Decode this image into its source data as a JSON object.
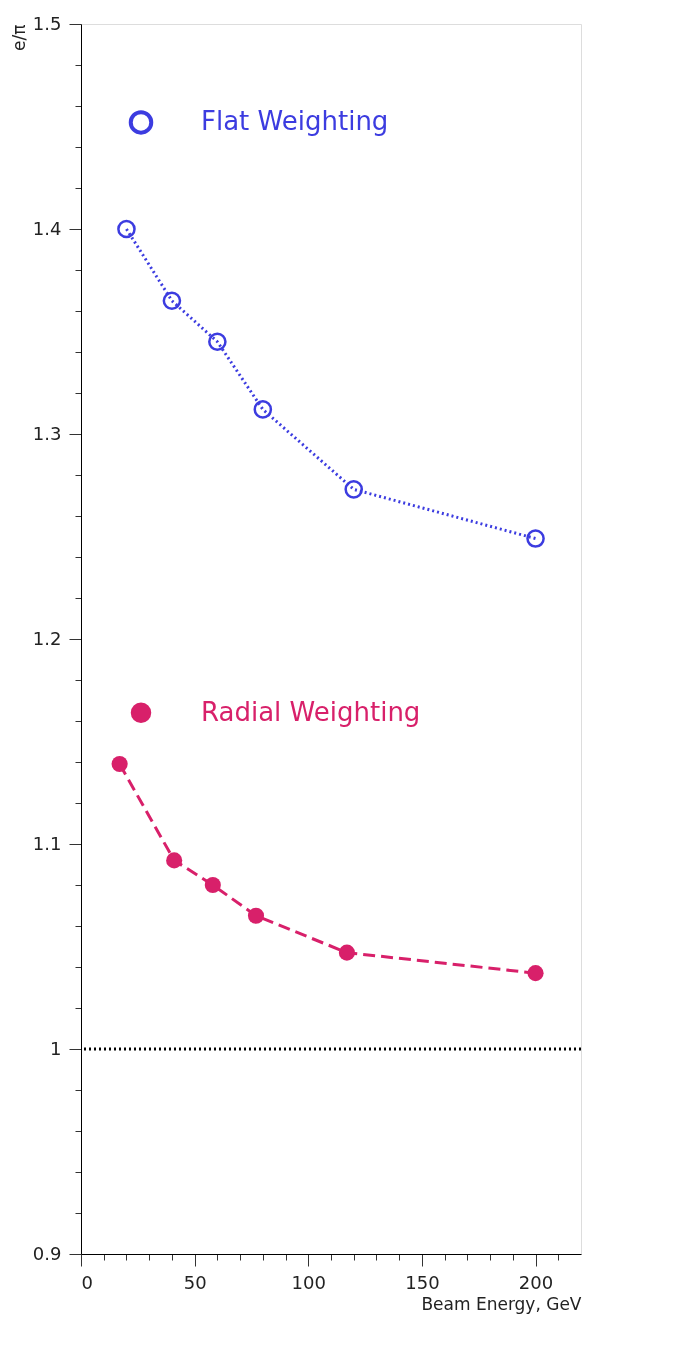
{
  "chart_data": {
    "type": "line",
    "xlabel": "Beam Energy, GeV",
    "ylabel": "e/π",
    "xlim": [
      0,
      220
    ],
    "ylim": [
      0.9,
      1.5
    ],
    "xticks": [
      0,
      {
        "value": 10,
        "label": null
      },
      {
        "value": 20,
        "label": null
      },
      {
        "value": 30,
        "label": null
      },
      {
        "value": 40,
        "label": null
      },
      50,
      {
        "value": 60,
        "label": null
      },
      {
        "value": 70,
        "label": null
      },
      {
        "value": 80,
        "label": null
      },
      {
        "value": 90,
        "label": null
      },
      100,
      {
        "value": 110,
        "label": null
      },
      {
        "value": 120,
        "label": null
      },
      {
        "value": 130,
        "label": null
      },
      {
        "value": 140,
        "label": null
      },
      150,
      {
        "value": 160,
        "label": null
      },
      {
        "value": 170,
        "label": null
      },
      {
        "value": 180,
        "label": null
      },
      {
        "value": 190,
        "label": null
      },
      200,
      {
        "value": 210,
        "label": null
      }
    ],
    "yticks": [
      0.9,
      {
        "value": 0.92,
        "label": null
      },
      {
        "value": 0.94,
        "label": null
      },
      {
        "value": 0.96,
        "label": null
      },
      {
        "value": 0.98,
        "label": null
      },
      1,
      {
        "value": 1.02,
        "label": null
      },
      {
        "value": 1.04,
        "label": null
      },
      {
        "value": 1.06,
        "label": null
      },
      {
        "value": 1.08,
        "label": null
      },
      1.1,
      {
        "value": 1.12,
        "label": null
      },
      {
        "value": 1.14,
        "label": null
      },
      {
        "value": 1.16,
        "label": null
      },
      {
        "value": 1.18,
        "label": null
      },
      1.2,
      {
        "value": 1.22,
        "label": null
      },
      {
        "value": 1.24,
        "label": null
      },
      {
        "value": 1.26,
        "label": null
      },
      {
        "value": 1.28,
        "label": null
      },
      1.3,
      {
        "value": 1.32,
        "label": null
      },
      {
        "value": 1.34,
        "label": null
      },
      {
        "value": 1.36,
        "label": null
      },
      {
        "value": 1.38,
        "label": null
      },
      1.4,
      {
        "value": 1.42,
        "label": null
      },
      {
        "value": 1.44,
        "label": null
      },
      {
        "value": 1.46,
        "label": null
      },
      {
        "value": 1.48,
        "label": null
      },
      1.5
    ],
    "grid": false,
    "legend": "top left",
    "marker": "circle",
    "ref_lines": [
      {
        "axis": "y",
        "value": 1,
        "color": "#000000",
        "line_style": "dotted"
      }
    ],
    "series": [
      {
        "name": "Flat Weighting",
        "color": "#3c3ce0",
        "line_style": "dotted",
        "x": [
          20,
          40,
          60,
          80,
          120,
          200
        ],
        "values": [
          1.4,
          1.365,
          1.345,
          1.312,
          1.273,
          1.249
        ]
      },
      {
        "name": "Radial Weighting",
        "color": "#d8206a",
        "line_style": "dashed",
        "x": [
          17,
          41,
          58,
          77,
          117,
          200
        ],
        "values": [
          1.139,
          1.092,
          1.08,
          1.065,
          1.047,
          1.037
        ]
      }
    ]
  }
}
